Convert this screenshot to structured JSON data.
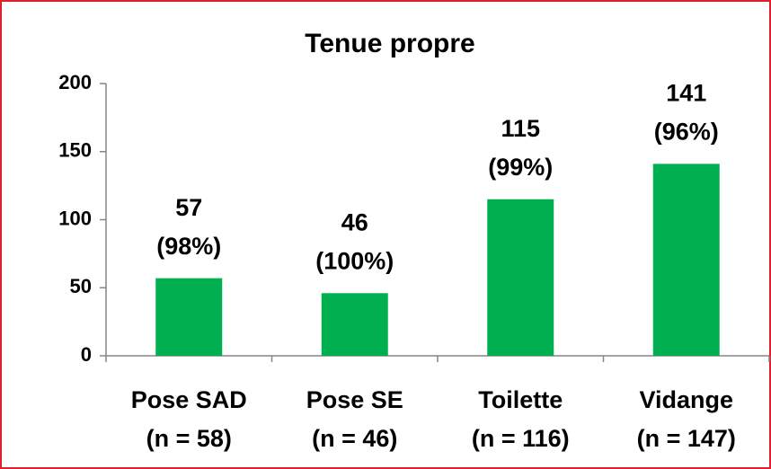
{
  "chart_data": {
    "type": "bar",
    "title": "Tenue propre",
    "categories": [
      "Pose SAD",
      "Pose SE",
      "Toilette",
      "Vidange"
    ],
    "category_counts": [
      "(n = 58)",
      "(n = 46)",
      "(n = 116)",
      "(n = 147)"
    ],
    "values": [
      57,
      46,
      115,
      141
    ],
    "percent_labels": [
      "(98%)",
      "(100%)",
      "(99%)",
      "(96%)"
    ],
    "color": "#00b050",
    "ylim": [
      0,
      200
    ],
    "yticks": [
      0,
      50,
      100,
      150,
      200
    ],
    "grid": false
  }
}
